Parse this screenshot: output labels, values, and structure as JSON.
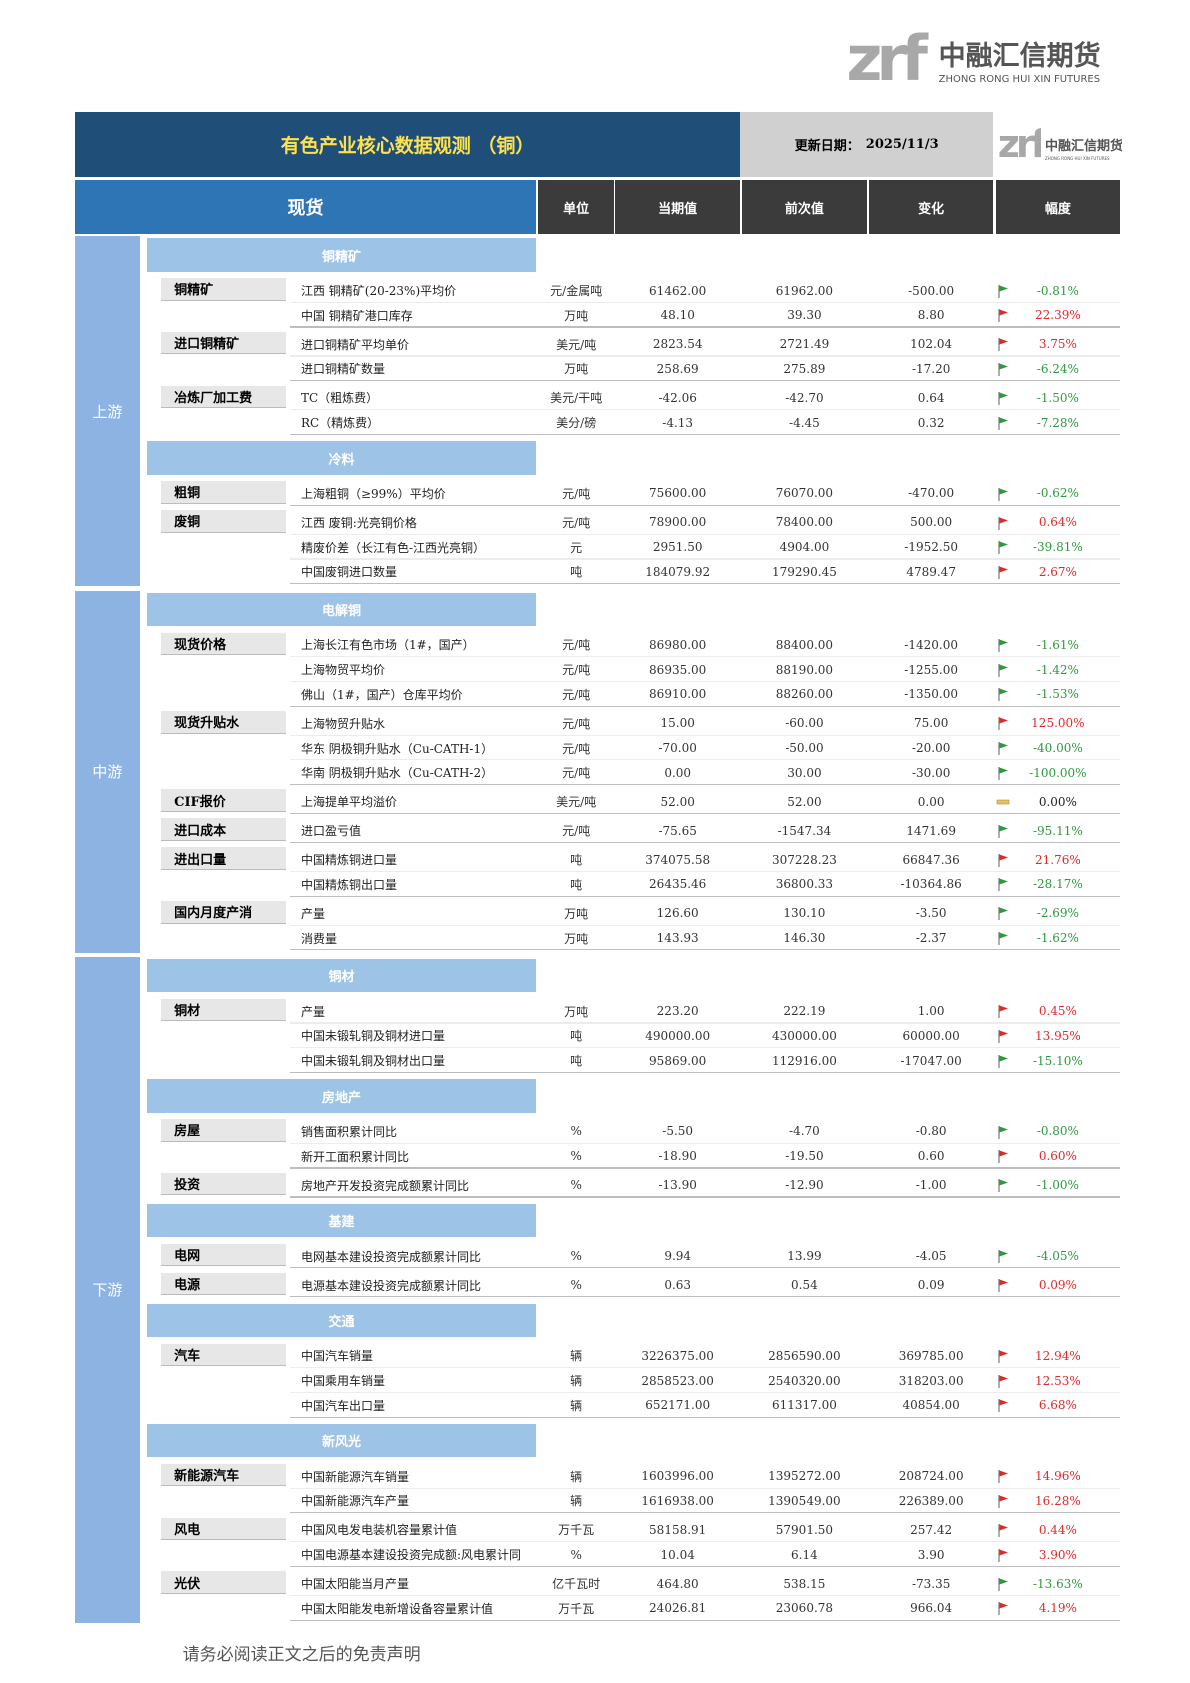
{
  "header": {
    "logo_mark": "zrf",
    "logo_cn": "中融汇信期货",
    "logo_en": "ZHONG RONG HUI XIN FUTURES",
    "title": "有色产业核心数据观测 （铜）",
    "update_label": "更新日期：",
    "update_date": "2025/11/3"
  },
  "table": {
    "columns": [
      "现货",
      "单位",
      "当期值",
      "前次值",
      "变化",
      "幅度"
    ],
    "sections": [
      {
        "name": "上游",
        "groups": [
          {
            "name": "铜精矿",
            "items": [
              {
                "label": "铜精矿",
                "rows": [
                  [
                    "江西 铜精矿(20-23%)平均价",
                    "元/金属吨",
                    "61462.00",
                    "61962.00",
                    "-500.00",
                    "-0.81%"
                  ],
                  [
                    "中国 铜精矿港口库存",
                    "万吨",
                    "48.10",
                    "39.30",
                    "8.80",
                    "22.39%"
                  ]
                ]
              },
              {
                "label": "进口铜精矿",
                "rows": [
                  [
                    "进口铜精矿平均单价",
                    "美元/吨",
                    "2823.54",
                    "2721.49",
                    "102.04",
                    "3.75%"
                  ],
                  [
                    "进口铜精矿数量",
                    "万吨",
                    "258.69",
                    "275.89",
                    "-17.20",
                    "-6.24%"
                  ]
                ]
              },
              {
                "label": "冶炼厂加工费",
                "rows": [
                  [
                    "TC（粗炼费）",
                    "美元/干吨",
                    "-42.06",
                    "-42.70",
                    "0.64",
                    "-1.50%"
                  ],
                  [
                    "RC（精炼费）",
                    "美分/磅",
                    "-4.13",
                    "-4.45",
                    "0.32",
                    "-7.28%"
                  ]
                ]
              }
            ]
          },
          {
            "name": "冷料",
            "items": [
              {
                "label": "粗铜",
                "rows": [
                  [
                    "上海粗铜（≥99%）平均价",
                    "元/吨",
                    "75600.00",
                    "76070.00",
                    "-470.00",
                    "-0.62%"
                  ]
                ]
              },
              {
                "label": "废铜",
                "rows": [
                  [
                    "江西 废铜:光亮铜价格",
                    "元/吨",
                    "78900.00",
                    "78400.00",
                    "500.00",
                    "0.64%"
                  ],
                  [
                    "精废价差（长江有色-江西光亮铜）",
                    "元",
                    "2951.50",
                    "4904.00",
                    "-1952.50",
                    "-39.81%"
                  ],
                  [
                    "中国废铜进口数量",
                    "吨",
                    "184079.92",
                    "179290.45",
                    "4789.47",
                    "2.67%"
                  ]
                ]
              }
            ]
          }
        ]
      },
      {
        "name": "中游",
        "groups": [
          {
            "name": "电解铜",
            "items": [
              {
                "label": "现货价格",
                "rows": [
                  [
                    "上海长江有色市场（1#，国产）",
                    "元/吨",
                    "86980.00",
                    "88400.00",
                    "-1420.00",
                    "-1.61%"
                  ],
                  [
                    "上海物贸平均价",
                    "元/吨",
                    "86935.00",
                    "88190.00",
                    "-1255.00",
                    "-1.42%"
                  ],
                  [
                    "佛山（1#，国产）仓库平均价",
                    "元/吨",
                    "86910.00",
                    "88260.00",
                    "-1350.00",
                    "-1.53%"
                  ]
                ]
              },
              {
                "label": "现货升贴水",
                "rows": [
                  [
                    "上海物贸升贴水",
                    "元/吨",
                    "15.00",
                    "-60.00",
                    "75.00",
                    "125.00%"
                  ],
                  [
                    "华东 阴极铜升贴水（Cu-CATH-1）",
                    "元/吨",
                    "-70.00",
                    "-50.00",
                    "-20.00",
                    "-40.00%"
                  ],
                  [
                    "华南 阴极铜升贴水（Cu-CATH-2）",
                    "元/吨",
                    "0.00",
                    "30.00",
                    "-30.00",
                    "-100.00%"
                  ]
                ]
              },
              {
                "label": "CIF报价",
                "rows": [
                  [
                    "上海提单平均溢价",
                    "美元/吨",
                    "52.00",
                    "52.00",
                    "0.00",
                    "0.00%"
                  ]
                ]
              },
              {
                "label": "进口成本",
                "rows": [
                  [
                    "进口盈亏值",
                    "元/吨",
                    "-75.65",
                    "-1547.34",
                    "1471.69",
                    "-95.11%"
                  ]
                ]
              },
              {
                "label": "进出口量",
                "rows": [
                  [
                    "中国精炼铜进口量",
                    "吨",
                    "374075.58",
                    "307228.23",
                    "66847.36",
                    "21.76%"
                  ],
                  [
                    "中国精炼铜出口量",
                    "吨",
                    "26435.46",
                    "36800.33",
                    "-10364.86",
                    "-28.17%"
                  ]
                ]
              },
              {
                "label": "国内月度产消",
                "rows": [
                  [
                    "产量",
                    "万吨",
                    "126.60",
                    "130.10",
                    "-3.50",
                    "-2.69%"
                  ],
                  [
                    "消费量",
                    "万吨",
                    "143.93",
                    "146.30",
                    "-2.37",
                    "-1.62%"
                  ]
                ]
              }
            ]
          }
        ]
      },
      {
        "name": "下游",
        "groups": [
          {
            "name": "铜材",
            "items": [
              {
                "label": "铜材",
                "rows": [
                  [
                    "产量",
                    "万吨",
                    "223.20",
                    "222.19",
                    "1.00",
                    "0.45%"
                  ],
                  [
                    "中国未锻轧铜及铜材进口量",
                    "吨",
                    "490000.00",
                    "430000.00",
                    "60000.00",
                    "13.95%"
                  ],
                  [
                    "中国未锻轧铜及铜材出口量",
                    "吨",
                    "95869.00",
                    "112916.00",
                    "-17047.00",
                    "-15.10%"
                  ]
                ]
              }
            ]
          },
          {
            "name": "房地产",
            "items": [
              {
                "label": "房屋",
                "rows": [
                  [
                    "销售面积累计同比",
                    "%",
                    "-5.50",
                    "-4.70",
                    "-0.80",
                    "-0.80%"
                  ],
                  [
                    "新开工面积累计同比",
                    "%",
                    "-18.90",
                    "-19.50",
                    "0.60",
                    "0.60%"
                  ]
                ]
              },
              {
                "label": "投资",
                "rows": [
                  [
                    "房地产开发投资完成额累计同比",
                    "%",
                    "-13.90",
                    "-12.90",
                    "-1.00",
                    "-1.00%"
                  ]
                ]
              }
            ]
          },
          {
            "name": "基建",
            "items": [
              {
                "label": "电网",
                "rows": [
                  [
                    "电网基本建设投资完成额累计同比",
                    "%",
                    "9.94",
                    "13.99",
                    "-4.05",
                    "-4.05%"
                  ]
                ]
              },
              {
                "label": "电源",
                "rows": [
                  [
                    "电源基本建设投资完成额累计同比",
                    "%",
                    "0.63",
                    "0.54",
                    "0.09",
                    "0.09%"
                  ]
                ]
              }
            ]
          },
          {
            "name": "交通",
            "items": [
              {
                "label": "汽车",
                "rows": [
                  [
                    "中国汽车销量",
                    "辆",
                    "3226375.00",
                    "2856590.00",
                    "369785.00",
                    "12.94%"
                  ],
                  [
                    "中国乘用车销量",
                    "辆",
                    "2858523.00",
                    "2540320.00",
                    "318203.00",
                    "12.53%"
                  ],
                  [
                    "中国汽车出口量",
                    "辆",
                    "652171.00",
                    "611317.00",
                    "40854.00",
                    "6.68%"
                  ]
                ]
              }
            ]
          },
          {
            "name": "新风光",
            "items": [
              {
                "label": "新能源汽车",
                "rows": [
                  [
                    "中国新能源汽车销量",
                    "辆",
                    "1603996.00",
                    "1395272.00",
                    "208724.00",
                    "14.96%"
                  ],
                  [
                    "中国新能源汽车产量",
                    "辆",
                    "1616938.00",
                    "1390549.00",
                    "226389.00",
                    "16.28%"
                  ]
                ]
              },
              {
                "label": "风电",
                "rows": [
                  [
                    "中国风电发电装机容量累计值",
                    "万千瓦",
                    "58158.91",
                    "57901.50",
                    "257.42",
                    "0.44%"
                  ],
                  [
                    "中国电源基本建设投资完成额:风电累计同",
                    "%",
                    "10.04",
                    "6.14",
                    "3.90",
                    "3.90%"
                  ]
                ]
              },
              {
                "label": "光伏",
                "rows": [
                  [
                    "中国太阳能当月产量",
                    "亿千瓦时",
                    "464.80",
                    "538.15",
                    "-73.35",
                    "-13.63%"
                  ],
                  [
                    "中国太阳能发电新增设备容量累计值",
                    "万千瓦",
                    "24026.81",
                    "23060.78",
                    "966.04",
                    "4.19%"
                  ]
                ]
              }
            ]
          }
        ]
      }
    ]
  },
  "footer": "请务必阅读正文之后的免责声明"
}
